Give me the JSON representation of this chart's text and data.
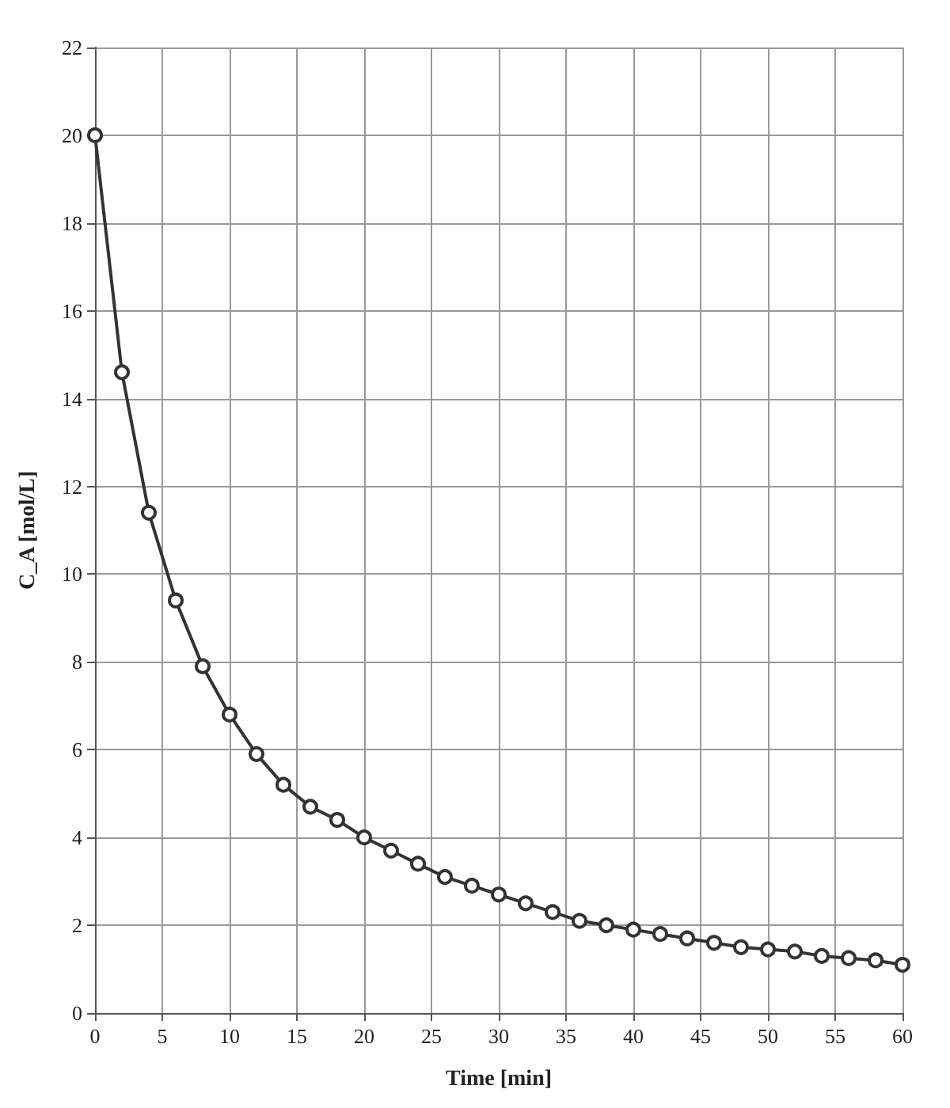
{
  "chart_data": {
    "type": "line",
    "xlabel": "Time [min]",
    "ylabel": "C_A [mol/L]",
    "x": [
      0,
      2,
      4,
      6,
      8,
      10,
      12,
      14,
      16,
      18,
      20,
      22,
      24,
      26,
      28,
      30,
      32,
      34,
      36,
      38,
      40,
      42,
      44,
      46,
      48,
      50,
      52,
      54,
      56,
      58,
      60
    ],
    "series": [
      {
        "color": "#333333",
        "values": [
          20,
          14.6,
          11.4,
          9.4,
          7.9,
          6.8,
          5.9,
          5.2,
          4.7,
          4.4,
          4.0,
          3.7,
          3.4,
          3.1,
          2.9,
          2.7,
          2.5,
          2.3,
          2.1,
          2.0,
          1.9,
          1.8,
          1.7,
          1.6,
          1.5,
          1.45,
          1.4,
          1.3,
          1.25,
          1.2,
          1.1
        ]
      }
    ],
    "xlim": [
      0,
      60
    ],
    "xticks": [
      0,
      5,
      10,
      15,
      20,
      25,
      30,
      35,
      40,
      45,
      50,
      55,
      60
    ],
    "ylim": [
      0,
      22
    ],
    "yticks": [
      0,
      2,
      4,
      6,
      8,
      10,
      12,
      14,
      16,
      18,
      20,
      22
    ],
    "grid": true,
    "marker": "circle",
    "line_style": "solid"
  }
}
